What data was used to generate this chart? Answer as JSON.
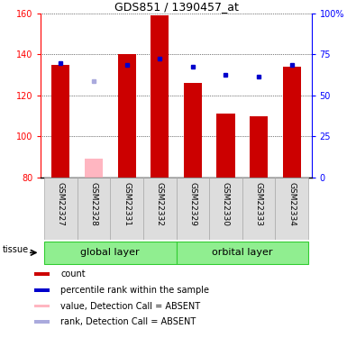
{
  "title": "GDS851 / 1390457_at",
  "samples": [
    "GSM22327",
    "GSM22328",
    "GSM22331",
    "GSM22332",
    "GSM22329",
    "GSM22330",
    "GSM22333",
    "GSM22334"
  ],
  "bar_values": [
    135,
    null,
    140,
    159,
    126,
    111,
    110,
    134
  ],
  "bar_absent_values": [
    null,
    89,
    null,
    null,
    null,
    null,
    null,
    null
  ],
  "rank_values": [
    136,
    null,
    135,
    138,
    134,
    130,
    129,
    135
  ],
  "rank_absent_values": [
    null,
    127,
    null,
    null,
    null,
    null,
    null,
    null
  ],
  "bar_color": "#CC0000",
  "bar_absent_color": "#FFB6C1",
  "rank_color": "#0000CC",
  "rank_absent_color": "#AAAADD",
  "ymin": 80,
  "ymax": 160,
  "yticks_left": [
    80,
    100,
    120,
    140,
    160
  ],
  "right_tick_labels": [
    "0",
    "25",
    "50",
    "75",
    "100%"
  ],
  "background_color": "#FFFFFF",
  "label_cell_color": "#DDDDDD",
  "label_cell_edge": "#AAAAAA",
  "group_info": [
    {
      "label": "global layer",
      "start": 0,
      "end": 3
    },
    {
      "label": "orbital layer",
      "start": 4,
      "end": 7
    }
  ],
  "group_fill": "#90EE90",
  "group_edge": "#33CC33",
  "tissue_label": "tissue",
  "legend_items": [
    {
      "label": "count",
      "color": "#CC0000"
    },
    {
      "label": "percentile rank within the sample",
      "color": "#0000CC"
    },
    {
      "label": "value, Detection Call = ABSENT",
      "color": "#FFB6C1"
    },
    {
      "label": "rank, Detection Call = ABSENT",
      "color": "#AAAADD"
    }
  ]
}
